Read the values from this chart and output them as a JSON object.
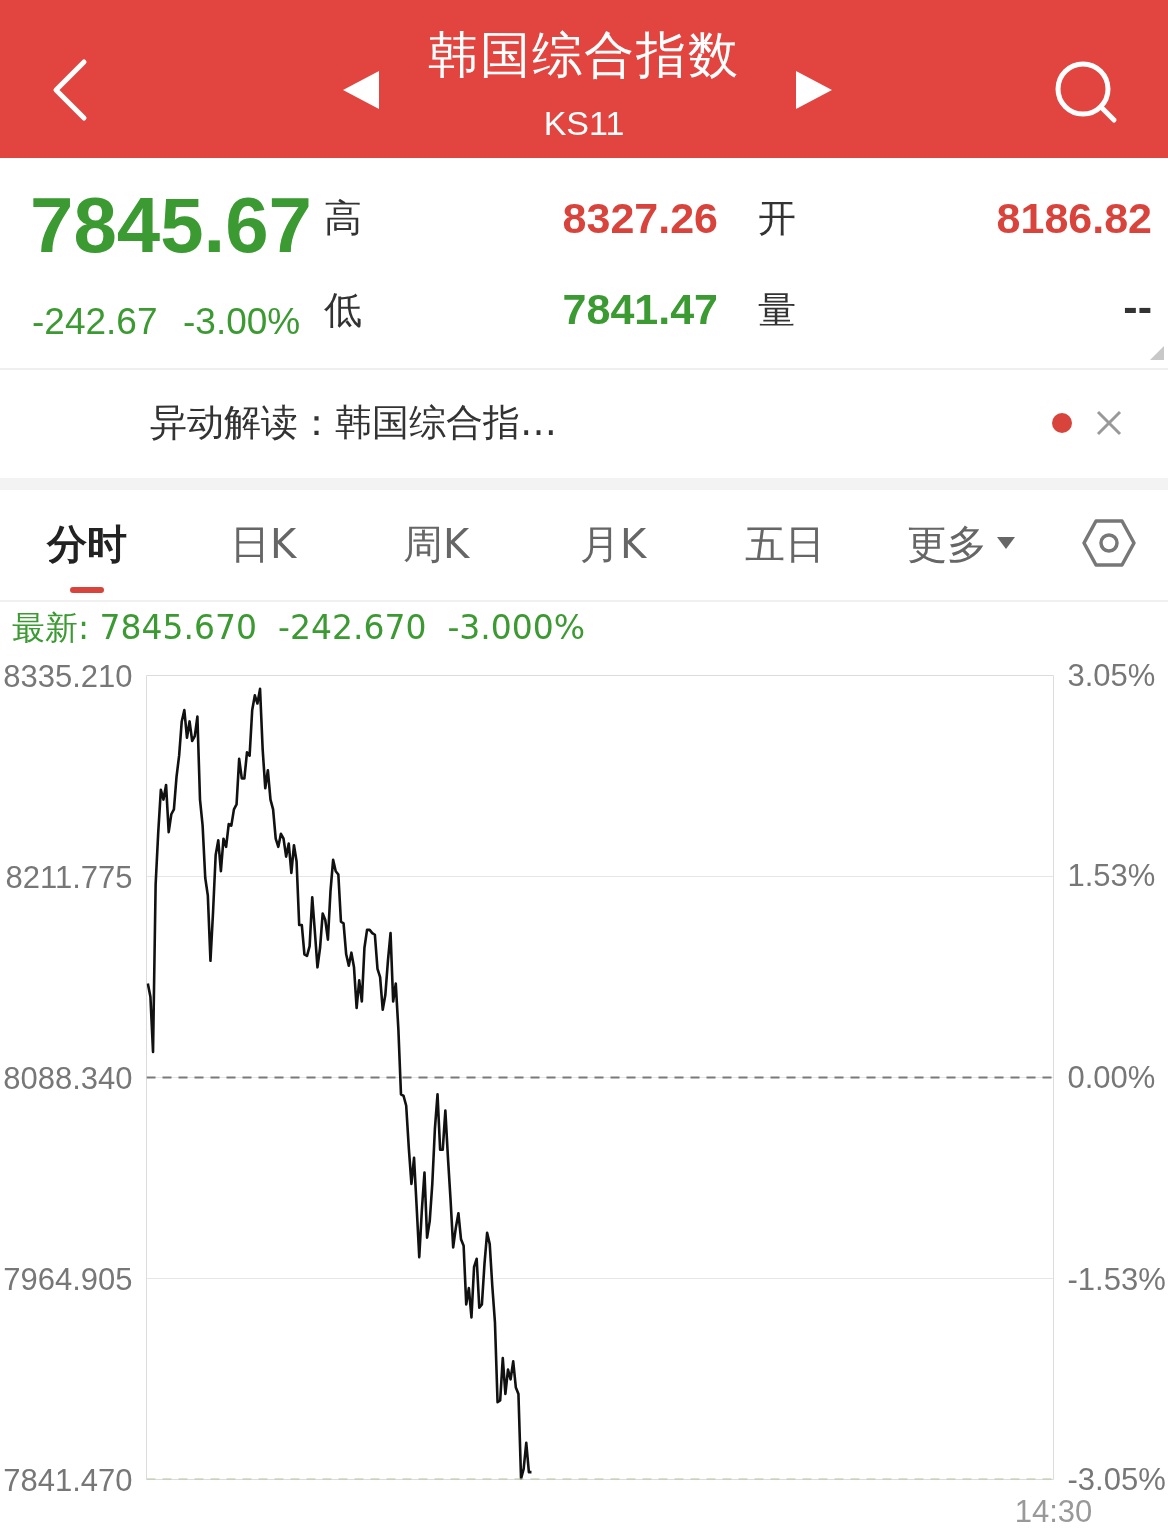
{
  "chart_data": {
    "type": "line",
    "title": "韩国综合指数",
    "subtitle": "KS11",
    "annotations": [
      "7845.67",
      "-242.67",
      "-3.00%",
      "高",
      "8327.26",
      "低",
      "7841.47",
      "开",
      "8186.82",
      "量",
      "--",
      "异动解读：韩国综合指…",
      "分时",
      "日K",
      "周K",
      "月K",
      "五日",
      "更多",
      "最新: 7845.670  -242.670  -3.000%"
    ],
    "categories": [
      null,
      null,
      null,
      null,
      null,
      null,
      null,
      null,
      null,
      null,
      null,
      null,
      null,
      null,
      null,
      null,
      null,
      null,
      null,
      null,
      null,
      null,
      null,
      null,
      null,
      null,
      null,
      null,
      null,
      null,
      null,
      null,
      null,
      null,
      null,
      null,
      null,
      null,
      null,
      null,
      null,
      null,
      null,
      null,
      null,
      null,
      null,
      null,
      null,
      null,
      null,
      null,
      null,
      null,
      null,
      null,
      null,
      null,
      null,
      null,
      null,
      null,
      null,
      null,
      null,
      null,
      null,
      null,
      null,
      null,
      null,
      null,
      null,
      null,
      null,
      null,
      null,
      null,
      null,
      null,
      null,
      null,
      null,
      null,
      null,
      null,
      null,
      null,
      null,
      null,
      null,
      null,
      null,
      null,
      null,
      null,
      null,
      null,
      null,
      null,
      null,
      null,
      null,
      null,
      null,
      null,
      null,
      null,
      null,
      null,
      null,
      null,
      null,
      null,
      null,
      null,
      null,
      null,
      null,
      null,
      null,
      null,
      null,
      null,
      null,
      null,
      null,
      null,
      null,
      null,
      null,
      null,
      null,
      null,
      null,
      null,
      null,
      null,
      null,
      null,
      null,
      null,
      null,
      null,
      null,
      null,
      null,
      null,
      null,
      null,
      null,
      null,
      null,
      null,
      null,
      null,
      null,
      null,
      null,
      null,
      null,
      null,
      null,
      null,
      null,
      null,
      null,
      null,
      null,
      null,
      null,
      null,
      null,
      null,
      null,
      null,
      null,
      null,
      null,
      null,
      null,
      null,
      null,
      null,
      null,
      null,
      null,
      null,
      null,
      null,
      null,
      null,
      null,
      null,
      null,
      null,
      null,
      null,
      null,
      null,
      null,
      null,
      null,
      null,
      null,
      null,
      null,
      null,
      null,
      null,
      null,
      null,
      null,
      null,
      null,
      null,
      null,
      null,
      null,
      null,
      null,
      null,
      null,
      null,
      null,
      null,
      null,
      null,
      null,
      null,
      null,
      null,
      null,
      null,
      null,
      null,
      null,
      null,
      null,
      null,
      null,
      null,
      null,
      null,
      null,
      null,
      null,
      null,
      null,
      null,
      null,
      null,
      null,
      null,
      null,
      null,
      null,
      null,
      null,
      null,
      null,
      null,
      null,
      null,
      null,
      null,
      null,
      null,
      null,
      null,
      null,
      null,
      null,
      null,
      null,
      null,
      null,
      null,
      null,
      null,
      null,
      null,
      null,
      null,
      null,
      null,
      null,
      null,
      null,
      null,
      null,
      null,
      null,
      null,
      null,
      null,
      null,
      null,
      null,
      null,
      null,
      null,
      null,
      null,
      null,
      null,
      null,
      null,
      null,
      null,
      null,
      null,
      null,
      null,
      null,
      null,
      null,
      null,
      null,
      null,
      null,
      null,
      null,
      null,
      null,
      null,
      null,
      null,
      null,
      null,
      null,
      null,
      null,
      null,
      null,
      null,
      null,
      null,
      null,
      null,
      null,
      null,
      null,
      null,
      null,
      null,
      null,
      "14:30"
    ],
    "series": [
      {
        "color": "#111111",
        "values": [
          8146,
          8138,
          8104,
          8207,
          8239,
          8265,
          8259,
          8268,
          8239,
          8250,
          8253,
          8273,
          8286,
          8307,
          8314,
          8297,
          8307,
          8295,
          8298,
          8310,
          8259,
          8243,
          8211,
          8200,
          8160,
          8190,
          8225,
          8234,
          8215,
          8235,
          8230,
          8244,
          8243,
          8253,
          8256,
          8284,
          8272,
          8272,
          8288,
          8286,
          8314,
          8323,
          8318,
          8327,
          8290,
          8266,
          8277,
          8259,
          8253,
          8235,
          8230,
          8238,
          8235,
          8224,
          8232,
          8214,
          8231,
          8221,
          8182,
          8182,
          8164,
          8163,
          8169,
          8199,
          8178,
          8156,
          8168,
          8189,
          8185,
          8173,
          8203,
          8222,
          8215,
          8213,
          8184,
          8183,
          8164,
          8157,
          8165,
          8156,
          8131,
          8148,
          8135,
          8168,
          8179,
          8179,
          8177,
          8176,
          8155,
          8150,
          8130,
          8139,
          8160,
          8177,
          8135,
          8146,
          8118,
          8078,
          8077,
          8071,
          8045,
          8023,
          8039,
          8009,
          7978,
          8007,
          8030,
          7990,
          8000,
          8023,
          8057,
          8078,
          8044,
          8044,
          8068,
          8039,
          8013,
          7984,
          7996,
          8005,
          7989,
          7985,
          7949,
          7959,
          7941,
          7972,
          7977,
          7947,
          7949,
          7974,
          7993,
          7986,
          7960,
          7938,
          7889,
          7890,
          7916,
          7894,
          7909,
          7903,
          7914,
          7898,
          7894,
          7842,
          7848,
          7864,
          7846,
          7846,
          null,
          null,
          null,
          null,
          null,
          null,
          null,
          null,
          null,
          null,
          null,
          null,
          null,
          null,
          null,
          null,
          null,
          null,
          null,
          null,
          null,
          null,
          null,
          null,
          null,
          null,
          null,
          null,
          null,
          null,
          null,
          null,
          null,
          null,
          null,
          null,
          null,
          null,
          null,
          null,
          null,
          null,
          null,
          null,
          null,
          null,
          null,
          null,
          null,
          null,
          null,
          null,
          null,
          null,
          null,
          null,
          null,
          null,
          null,
          null,
          null,
          null,
          null,
          null,
          null,
          null,
          null,
          null,
          null,
          null,
          null,
          null,
          null,
          null,
          null,
          null,
          null,
          null,
          null,
          null,
          null,
          null,
          null,
          null,
          null,
          null,
          null,
          null,
          null,
          null,
          null,
          null,
          null,
          null,
          null,
          null,
          null,
          null,
          null,
          null,
          null,
          null,
          null,
          null,
          null,
          null,
          null,
          null,
          null,
          null,
          null,
          null,
          null,
          null,
          null,
          null,
          null,
          null,
          null,
          null,
          null,
          null,
          null,
          null,
          null,
          null,
          null,
          null,
          null,
          null,
          null,
          null,
          null,
          null,
          null,
          null,
          null,
          null,
          null,
          null,
          null,
          null,
          null,
          null,
          null,
          null,
          null,
          null,
          null,
          null,
          null,
          null,
          null,
          null,
          null,
          null,
          null,
          null,
          null,
          null,
          null,
          null,
          null,
          null,
          null,
          null,
          null,
          null,
          null,
          null,
          null,
          null,
          null,
          null,
          null,
          null,
          null,
          null,
          null,
          null,
          null,
          null,
          null,
          null,
          null,
          null,
          null,
          null,
          null,
          null,
          null,
          null,
          null,
          null,
          null,
          null,
          null,
          null,
          null,
          null
        ]
      }
    ],
    "ylim": [
      7841.47,
      8335.21
    ],
    "yticks": [
      {
        "value": 8335.21,
        "label": "8335.210"
      },
      {
        "value": 8211.775,
        "label": "8211.775"
      },
      {
        "value": 8088.34,
        "label": "8088.340"
      },
      {
        "value": 7964.905,
        "label": "7964.905"
      },
      {
        "value": 7841.47,
        "label": "7841.470"
      }
    ],
    "y2lim": [
      -3.05,
      3.05
    ],
    "y2ticks": [
      {
        "value": 3.05,
        "label": "3.05%"
      },
      {
        "value": 1.53,
        "label": "1.53%"
      },
      {
        "value": 0,
        "label": "0.00%"
      },
      {
        "value": -1.53,
        "label": "-1.53%"
      },
      {
        "value": -3.05,
        "label": "-3.05%"
      }
    ],
    "ref_lines": [
      {
        "axis": "y",
        "value": 8088.34,
        "color": "#7a7a7a",
        "line_style": "dashed"
      },
      {
        "axis": "y",
        "value": 7841.47,
        "color": "#b3c39f",
        "line_style": "dashed"
      }
    ],
    "grid": "y",
    "line_style": "solid"
  }
}
